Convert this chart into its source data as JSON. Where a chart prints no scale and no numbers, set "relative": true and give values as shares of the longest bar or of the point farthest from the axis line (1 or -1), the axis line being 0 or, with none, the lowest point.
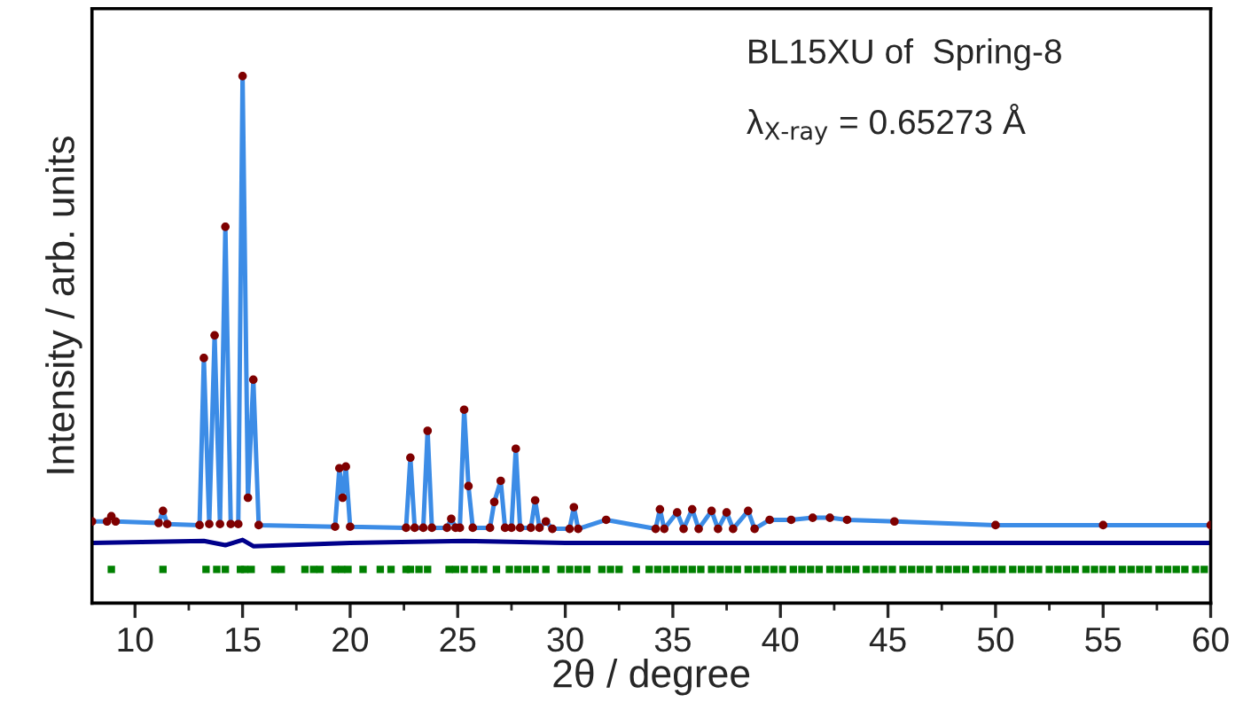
{
  "chart_data": {
    "type": "line",
    "relative": true,
    "xlabel": "2θ / degree",
    "ylabel": "Intensity / arb. units",
    "xlim": [
      8,
      60
    ],
    "xticks": [
      10,
      15,
      20,
      25,
      30,
      35,
      40,
      45,
      50,
      55,
      60
    ],
    "annotations": [
      "BL15XU of  Spring-8",
      "λ$_{X-ray}$ = 0.65273 Å"
    ],
    "grid": false,
    "legend": false,
    "x": [
      8.0,
      8.7,
      8.9,
      9.1,
      11.1,
      11.3,
      11.5,
      13.0,
      13.2,
      13.45,
      13.7,
      13.95,
      14.2,
      14.45,
      14.8,
      15.0,
      15.25,
      15.5,
      15.75,
      19.3,
      19.5,
      19.65,
      19.8,
      20.0,
      22.6,
      22.8,
      23.0,
      23.4,
      23.6,
      23.8,
      24.5,
      24.7,
      24.9,
      25.1,
      25.3,
      25.5,
      25.7,
      26.5,
      26.7,
      27.0,
      27.2,
      27.5,
      27.7,
      27.9,
      28.4,
      28.6,
      28.8,
      29.1,
      29.4,
      30.2,
      30.4,
      30.6,
      31.9,
      34.2,
      34.4,
      34.6,
      35.2,
      35.5,
      35.9,
      36.2,
      36.8,
      37.1,
      37.5,
      37.8,
      38.5,
      38.8,
      39.5,
      40.5,
      41.5,
      42.3,
      43.1,
      45.3,
      50.0,
      55.0,
      60.0
    ],
    "series": [
      {
        "color": "#3c8ce6",
        "values": [
          0.155,
          0.155,
          0.165,
          0.155,
          0.152,
          0.175,
          0.15,
          0.148,
          0.465,
          0.15,
          0.508,
          0.15,
          0.714,
          0.15,
          0.15,
          1.0,
          0.2,
          0.424,
          0.148,
          0.145,
          0.256,
          0.2,
          0.259,
          0.145,
          0.143,
          0.276,
          0.143,
          0.143,
          0.327,
          0.143,
          0.143,
          0.16,
          0.143,
          0.143,
          0.367,
          0.222,
          0.143,
          0.143,
          0.192,
          0.232,
          0.143,
          0.143,
          0.293,
          0.143,
          0.143,
          0.195,
          0.143,
          0.155,
          0.141,
          0.141,
          0.182,
          0.141,
          0.158,
          0.141,
          0.178,
          0.141,
          0.172,
          0.141,
          0.178,
          0.141,
          0.175,
          0.141,
          0.172,
          0.141,
          0.175,
          0.141,
          0.158,
          0.158,
          0.162,
          0.162,
          0.158,
          0.155,
          0.148,
          0.148,
          0.148
        ]
      },
      {
        "type": "scatter",
        "marker": "circle",
        "color": "#7f0000",
        "values": [
          0.155,
          0.155,
          0.165,
          0.155,
          0.152,
          0.175,
          0.15,
          0.148,
          0.465,
          0.15,
          0.508,
          0.15,
          0.714,
          0.15,
          0.15,
          1.0,
          0.2,
          0.424,
          0.148,
          0.145,
          0.256,
          0.2,
          0.259,
          0.145,
          0.143,
          0.276,
          0.143,
          0.143,
          0.327,
          0.143,
          0.143,
          0.16,
          0.143,
          0.143,
          0.367,
          0.222,
          0.143,
          0.143,
          0.192,
          0.232,
          0.143,
          0.143,
          0.293,
          0.143,
          0.143,
          0.195,
          0.143,
          0.155,
          0.141,
          0.141,
          0.182,
          0.141,
          0.158,
          0.141,
          0.178,
          0.141,
          0.172,
          0.141,
          0.178,
          0.141,
          0.175,
          0.141,
          0.172,
          0.141,
          0.175,
          0.141,
          0.158,
          0.158,
          0.162,
          0.162,
          0.158,
          0.155,
          0.148,
          0.148,
          0.148
        ]
      },
      {
        "color": "#00008b",
        "x": [
          8.0,
          13.2,
          14.2,
          15.0,
          15.5,
          20.0,
          25.3,
          30.0,
          40.0,
          50.0,
          60.0
        ],
        "values": [
          0.114,
          0.118,
          0.11,
          0.12,
          0.108,
          0.114,
          0.118,
          0.114,
          0.114,
          0.114,
          0.114
        ]
      },
      {
        "type": "scatter",
        "marker": "square",
        "color": "#008000",
        "x": [
          8.9,
          11.3,
          13.3,
          13.8,
          14.2,
          14.9,
          15.1,
          15.4,
          16.5,
          16.8,
          17.9,
          18.3,
          18.6,
          19.3,
          19.6,
          19.9,
          20.6,
          21.4,
          21.9,
          22.6,
          22.8,
          23.2,
          23.6,
          24.6,
          24.9,
          25.3,
          25.8,
          26.2,
          26.8,
          27.4,
          27.8,
          28.2,
          28.6,
          29.1,
          29.8,
          30.2,
          30.6,
          31.0,
          31.7,
          32.1,
          32.5,
          33.3,
          33.9,
          34.3,
          34.7,
          35.1,
          35.5,
          35.9,
          36.3,
          36.8,
          37.2,
          37.6,
          38.0,
          38.5,
          38.9,
          39.3,
          39.7,
          40.1,
          40.6,
          41.0,
          41.4,
          41.8,
          42.3,
          42.7,
          43.1,
          43.5,
          44.0,
          44.4,
          44.8,
          45.2,
          45.7,
          46.1,
          46.5,
          46.9,
          47.4,
          47.8,
          48.2,
          48.6,
          49.1,
          49.5,
          49.9,
          50.3,
          50.8,
          51.2,
          51.6,
          52.0,
          52.5,
          52.9,
          53.3,
          53.7,
          54.2,
          54.6,
          55.0,
          55.4,
          55.9,
          56.3,
          56.7,
          57.1,
          57.6,
          58.0,
          58.4,
          58.8,
          59.3,
          59.7
        ],
        "values": [
          0.064,
          0.064,
          0.064,
          0.064,
          0.064,
          0.064,
          0.064,
          0.064,
          0.064,
          0.064,
          0.064,
          0.064,
          0.064,
          0.064,
          0.064,
          0.064,
          0.064,
          0.064,
          0.064,
          0.064,
          0.064,
          0.064,
          0.064,
          0.064,
          0.064,
          0.064,
          0.064,
          0.064,
          0.064,
          0.064,
          0.064,
          0.064,
          0.064,
          0.064,
          0.064,
          0.064,
          0.064,
          0.064,
          0.064,
          0.064,
          0.064,
          0.064,
          0.064,
          0.064,
          0.064,
          0.064,
          0.064,
          0.064,
          0.064,
          0.064,
          0.064,
          0.064,
          0.064,
          0.064,
          0.064,
          0.064,
          0.064,
          0.064,
          0.064,
          0.064,
          0.064,
          0.064,
          0.064,
          0.064,
          0.064,
          0.064,
          0.064,
          0.064,
          0.064,
          0.064,
          0.064,
          0.064,
          0.064,
          0.064,
          0.064,
          0.064,
          0.064,
          0.064,
          0.064,
          0.064,
          0.064,
          0.064,
          0.064,
          0.064,
          0.064,
          0.064,
          0.064,
          0.064,
          0.064,
          0.064,
          0.064,
          0.064,
          0.064,
          0.064,
          0.064,
          0.064,
          0.064,
          0.064,
          0.064,
          0.064,
          0.064,
          0.064,
          0.064,
          0.064
        ]
      }
    ]
  }
}
